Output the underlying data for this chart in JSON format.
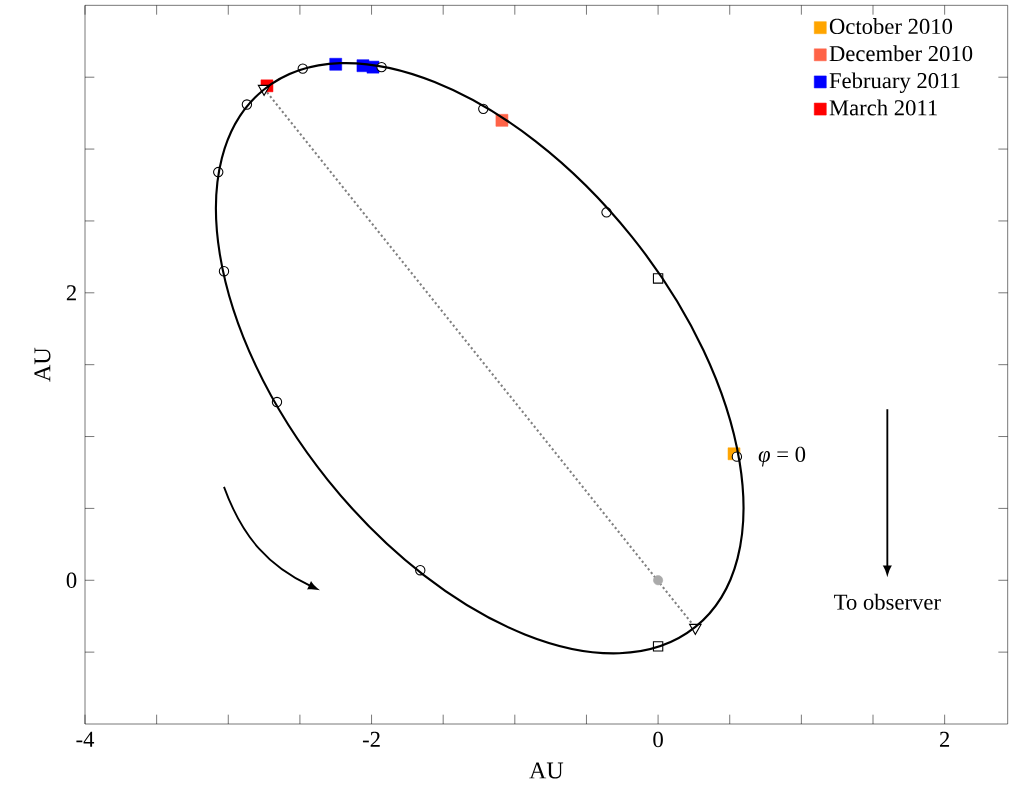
{
  "chart_data": {
    "type": "line",
    "xlabel": "AU",
    "ylabel": "AU",
    "xlim": [
      -4,
      2.44
    ],
    "ylim": [
      -1,
      4
    ],
    "xticks": [
      -4,
      {
        "value": -3.5,
        "label": null
      },
      {
        "value": -3,
        "label": null
      },
      {
        "value": -2.5,
        "label": null
      },
      -2,
      {
        "value": -1.5,
        "label": null
      },
      {
        "value": -1,
        "label": null
      },
      {
        "value": -0.5,
        "label": null
      },
      0,
      {
        "value": 0.5,
        "label": null
      },
      {
        "value": 1,
        "label": null
      },
      {
        "value": 1.5,
        "label": null
      },
      2
    ],
    "yticks": [
      {
        "value": -0.5,
        "label": null
      },
      0,
      {
        "value": 0.5,
        "label": null
      },
      {
        "value": 1,
        "label": null
      },
      {
        "value": 1.5,
        "label": null
      },
      2,
      {
        "value": 2.5,
        "label": null
      },
      {
        "value": 3,
        "label": null
      },
      {
        "value": 3.5,
        "label": null
      }
    ],
    "grid": false,
    "legend": "top right",
    "series": [
      {
        "type": "line",
        "color": "#808080",
        "line_style": "dotted",
        "marker": "none",
        "x": [
          -2.75,
          0.26
        ],
        "values": [
          3.42,
          -0.33
        ]
      },
      {
        "type": "scatter",
        "color": "#aaaaaa",
        "marker": "circle",
        "x": [
          0
        ],
        "values": [
          0
        ]
      },
      {
        "type": "scatter",
        "name": "October 2010",
        "color": "#ffa500",
        "marker": "square",
        "x": [
          0.53
        ],
        "values": [
          0.88
        ]
      },
      {
        "type": "scatter",
        "name": "December 2010",
        "color": "#ff6347",
        "marker": "square",
        "x": [
          -1.09
        ],
        "values": [
          3.2
        ]
      },
      {
        "type": "scatter",
        "name": "February 2011",
        "color": "#0000ff",
        "marker": "square",
        "x": [
          -2.25,
          -2.06,
          -1.99
        ],
        "values": [
          3.59,
          3.58,
          3.57
        ]
      },
      {
        "type": "scatter",
        "name": "March 2011",
        "color": "#ff0000",
        "marker": "square",
        "x": [
          -2.73
        ],
        "values": [
          3.44
        ]
      },
      {
        "type": "scatter",
        "color": "#000000",
        "marker": "circle",
        "x": [
          0.55,
          -0.36,
          -1.22,
          -1.93,
          -2.48,
          -2.87,
          -3.07,
          -3.03,
          -2.66,
          -1.66
        ],
        "values": [
          0.86,
          2.56,
          3.28,
          3.57,
          3.56,
          3.31,
          2.84,
          2.15,
          1.24,
          0.07
        ]
      },
      {
        "type": "scatter",
        "color": "#000000",
        "marker": "square",
        "x": [
          0,
          0
        ],
        "values": [
          2.1,
          -0.46
        ]
      },
      {
        "type": "scatter",
        "color": "#000000",
        "marker": "triangle",
        "x": [
          -2.75,
          0.26
        ],
        "values": [
          3.42,
          -0.33
        ]
      }
    ],
    "annotations": [
      {
        "text": "*φ* = 0",
        "x": 0.55,
        "y": 0.86
      },
      "To observer"
    ]
  }
}
